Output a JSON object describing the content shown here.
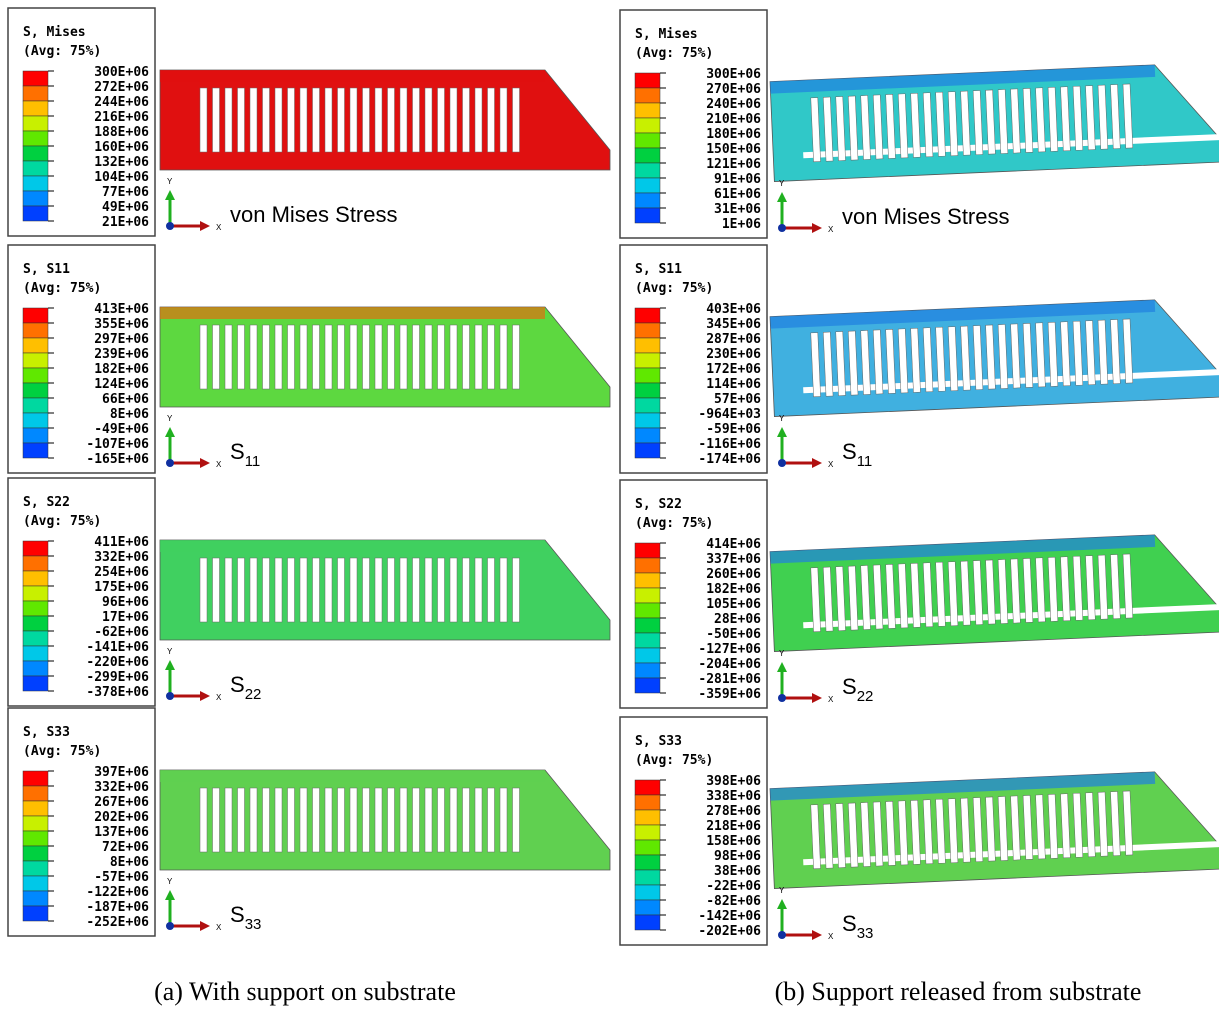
{
  "columns": [
    {
      "caption": "(a) With support on substrate",
      "panels": [
        {
          "legend": {
            "title": "S, Mises",
            "avg": "(Avg: 75%)",
            "labels": [
              "300E+06",
              "272E+06",
              "244E+06",
              "216E+06",
              "188E+06",
              "160E+06",
              "132E+06",
              "104E+06",
              "77E+06",
              "49E+06",
              "21E+06"
            ]
          },
          "triad": {
            "y": "Y",
            "x": "X"
          },
          "annotation": {
            "text": "von Mises Stress"
          }
        },
        {
          "legend": {
            "title": "S, S11",
            "avg": "(Avg: 75%)",
            "labels": [
              "413E+06",
              "355E+06",
              "297E+06",
              "239E+06",
              "182E+06",
              "124E+06",
              "66E+06",
              "8E+06",
              "-49E+06",
              "-107E+06",
              "-165E+06"
            ]
          },
          "triad": {
            "y": "Y",
            "x": "X"
          },
          "annotation": {
            "text": "S",
            "sub": "11"
          }
        },
        {
          "legend": {
            "title": "S, S22",
            "avg": "(Avg: 75%)",
            "labels": [
              "411E+06",
              "332E+06",
              "254E+06",
              "175E+06",
              "96E+06",
              "17E+06",
              "-62E+06",
              "-141E+06",
              "-220E+06",
              "-299E+06",
              "-378E+06"
            ]
          },
          "triad": {
            "y": "Y",
            "x": "X"
          },
          "annotation": {
            "text": "S",
            "sub": "22"
          }
        },
        {
          "legend": {
            "title": "S, S33",
            "avg": "(Avg: 75%)",
            "labels": [
              "397E+06",
              "332E+06",
              "267E+06",
              "202E+06",
              "137E+06",
              "72E+06",
              "8E+06",
              "-57E+06",
              "-122E+06",
              "-187E+06",
              "-252E+06"
            ]
          },
          "triad": {
            "y": "Y",
            "x": "X"
          },
          "annotation": {
            "text": "S",
            "sub": "33"
          }
        }
      ]
    },
    {
      "caption": "(b) Support released from substrate",
      "panels": [
        {
          "legend": {
            "title": "S, Mises",
            "avg": "(Avg: 75%)",
            "labels": [
              "300E+06",
              "270E+06",
              "240E+06",
              "210E+06",
              "180E+06",
              "150E+06",
              "121E+06",
              "91E+06",
              "61E+06",
              "31E+06",
              "1E+06"
            ]
          },
          "triad": {
            "y": "Y",
            "x": "X"
          },
          "annotation": {
            "text": "von Mises Stress"
          }
        },
        {
          "legend": {
            "title": "S, S11",
            "avg": "(Avg: 75%)",
            "labels": [
              "403E+06",
              "345E+06",
              "287E+06",
              "230E+06",
              "172E+06",
              "114E+06",
              "57E+06",
              "-964E+03",
              "-59E+06",
              "-116E+06",
              "-174E+06"
            ]
          },
          "triad": {
            "y": "Y",
            "x": "X"
          },
          "annotation": {
            "text": "S",
            "sub": "11"
          }
        },
        {
          "legend": {
            "title": "S, S22",
            "avg": "(Avg: 75%)",
            "labels": [
              "414E+06",
              "337E+06",
              "260E+06",
              "182E+06",
              "105E+06",
              "28E+06",
              "-50E+06",
              "-127E+06",
              "-204E+06",
              "-281E+06",
              "-359E+06"
            ]
          },
          "triad": {
            "y": "Y",
            "x": "X"
          },
          "annotation": {
            "text": "S",
            "sub": "22"
          }
        },
        {
          "legend": {
            "title": "S, S33",
            "avg": "(Avg: 75%)",
            "labels": [
              "398E+06",
              "338E+06",
              "278E+06",
              "218E+06",
              "158E+06",
              "98E+06",
              "38E+06",
              "-22E+06",
              "-82E+06",
              "-142E+06",
              "-202E+06"
            ]
          },
          "triad": {
            "y": "Y",
            "x": "X"
          },
          "annotation": {
            "text": "S",
            "sub": "33"
          }
        }
      ]
    }
  ]
}
